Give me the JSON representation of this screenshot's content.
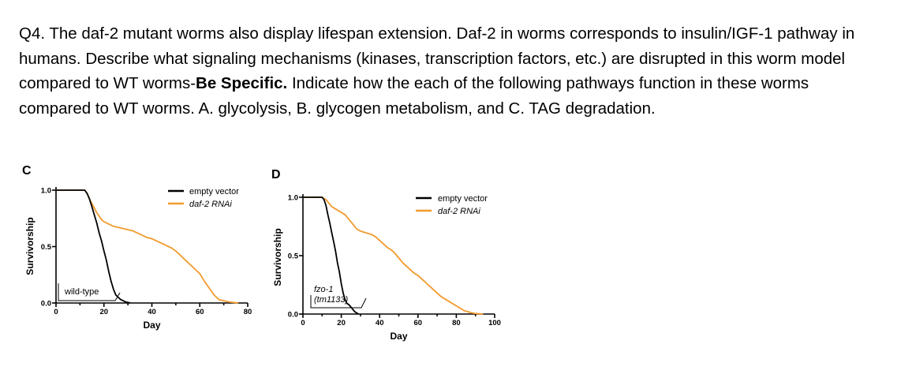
{
  "question": {
    "text_before": "Q4. The daf-2 mutant worms also display lifespan extension. Daf-2 in worms corresponds to insulin/IGF-1 pathway in humans. Describe what signaling mechanisms (kinases, transcription factors, etc.) are disrupted in this worm model compared to WT worms-",
    "bold": "Be Specific.",
    "text_after": " Indicate how the each of the following pathways function in these worms compared to WT worms. A. glycolysis, B. glycogen metabolism, and C. TAG degradation."
  },
  "colors": {
    "empty_vector": "#000000",
    "daf2_rnai": "#f39a2e"
  },
  "chart_data": [
    {
      "type": "line",
      "panel": "C",
      "xlabel": "Day",
      "ylabel": "Survivorship",
      "xlim": [
        0,
        80
      ],
      "ylim": [
        0,
        1
      ],
      "xticks": [
        "0",
        "20",
        "40",
        "60",
        "80"
      ],
      "yticks": [
        "0.0",
        "0.5",
        "1.0"
      ],
      "annotation": "wild-type",
      "legend": [
        "empty vector",
        "daf-2 RNAi"
      ],
      "series": [
        {
          "name": "empty vector",
          "x": [
            0,
            12,
            13,
            14,
            15,
            16,
            17,
            18,
            19,
            20,
            21,
            22,
            23,
            24,
            25,
            26,
            27,
            28,
            29,
            30,
            31
          ],
          "y": [
            1.0,
            1.0,
            0.97,
            0.92,
            0.85,
            0.78,
            0.71,
            0.62,
            0.55,
            0.46,
            0.38,
            0.28,
            0.19,
            0.12,
            0.07,
            0.05,
            0.03,
            0.02,
            0.01,
            0.005,
            0.0
          ]
        },
        {
          "name": "daf-2 RNAi",
          "x": [
            0,
            12,
            13,
            14,
            15,
            16,
            17,
            18,
            19,
            20,
            22,
            24,
            26,
            28,
            30,
            32,
            34,
            36,
            38,
            40,
            42,
            44,
            46,
            48,
            50,
            52,
            54,
            56,
            58,
            60,
            62,
            64,
            66,
            68,
            70,
            72,
            74,
            76
          ],
          "y": [
            1.0,
            1.0,
            0.97,
            0.92,
            0.88,
            0.84,
            0.8,
            0.77,
            0.74,
            0.72,
            0.7,
            0.68,
            0.67,
            0.66,
            0.65,
            0.64,
            0.62,
            0.6,
            0.58,
            0.57,
            0.55,
            0.53,
            0.51,
            0.49,
            0.46,
            0.42,
            0.38,
            0.34,
            0.3,
            0.26,
            0.19,
            0.13,
            0.07,
            0.03,
            0.02,
            0.01,
            0.005,
            0.0
          ]
        }
      ]
    },
    {
      "type": "line",
      "panel": "D",
      "xlabel": "Day",
      "ylabel": "Survivorship",
      "xlim": [
        0,
        100
      ],
      "ylim": [
        0,
        1
      ],
      "xticks": [
        "0",
        "20",
        "40",
        "60",
        "80",
        "100"
      ],
      "yticks": [
        "0.0",
        "0.5",
        "1.0"
      ],
      "annotation": [
        "fzo-1",
        "(tm1133)"
      ],
      "legend": [
        "empty vector",
        "daf-2 RNAi"
      ],
      "series": [
        {
          "name": "empty vector",
          "x": [
            0,
            10,
            11,
            12,
            13,
            14,
            15,
            16,
            17,
            18,
            19,
            20,
            21,
            22,
            23,
            24,
            25,
            26,
            27,
            28,
            29
          ],
          "y": [
            1.0,
            1.0,
            0.98,
            0.93,
            0.85,
            0.78,
            0.7,
            0.62,
            0.54,
            0.44,
            0.36,
            0.26,
            0.18,
            0.12,
            0.09,
            0.08,
            0.06,
            0.04,
            0.02,
            0.01,
            0.0
          ]
        },
        {
          "name": "daf-2 RNAi",
          "x": [
            0,
            10,
            11,
            12,
            13,
            14,
            15,
            16,
            18,
            20,
            22,
            24,
            26,
            28,
            30,
            32,
            34,
            36,
            38,
            40,
            42,
            44,
            46,
            48,
            50,
            52,
            54,
            56,
            58,
            60,
            62,
            64,
            66,
            68,
            70,
            72,
            74,
            76,
            78,
            80,
            82,
            84,
            86,
            88,
            90,
            92,
            94
          ],
          "y": [
            1.0,
            1.0,
            0.99,
            0.98,
            0.96,
            0.94,
            0.92,
            0.91,
            0.89,
            0.87,
            0.85,
            0.81,
            0.77,
            0.73,
            0.71,
            0.7,
            0.69,
            0.68,
            0.66,
            0.63,
            0.6,
            0.57,
            0.55,
            0.52,
            0.48,
            0.44,
            0.41,
            0.38,
            0.35,
            0.33,
            0.3,
            0.27,
            0.24,
            0.21,
            0.18,
            0.15,
            0.13,
            0.11,
            0.09,
            0.07,
            0.05,
            0.03,
            0.02,
            0.01,
            0.005,
            0.002,
            0.0
          ]
        }
      ]
    }
  ]
}
